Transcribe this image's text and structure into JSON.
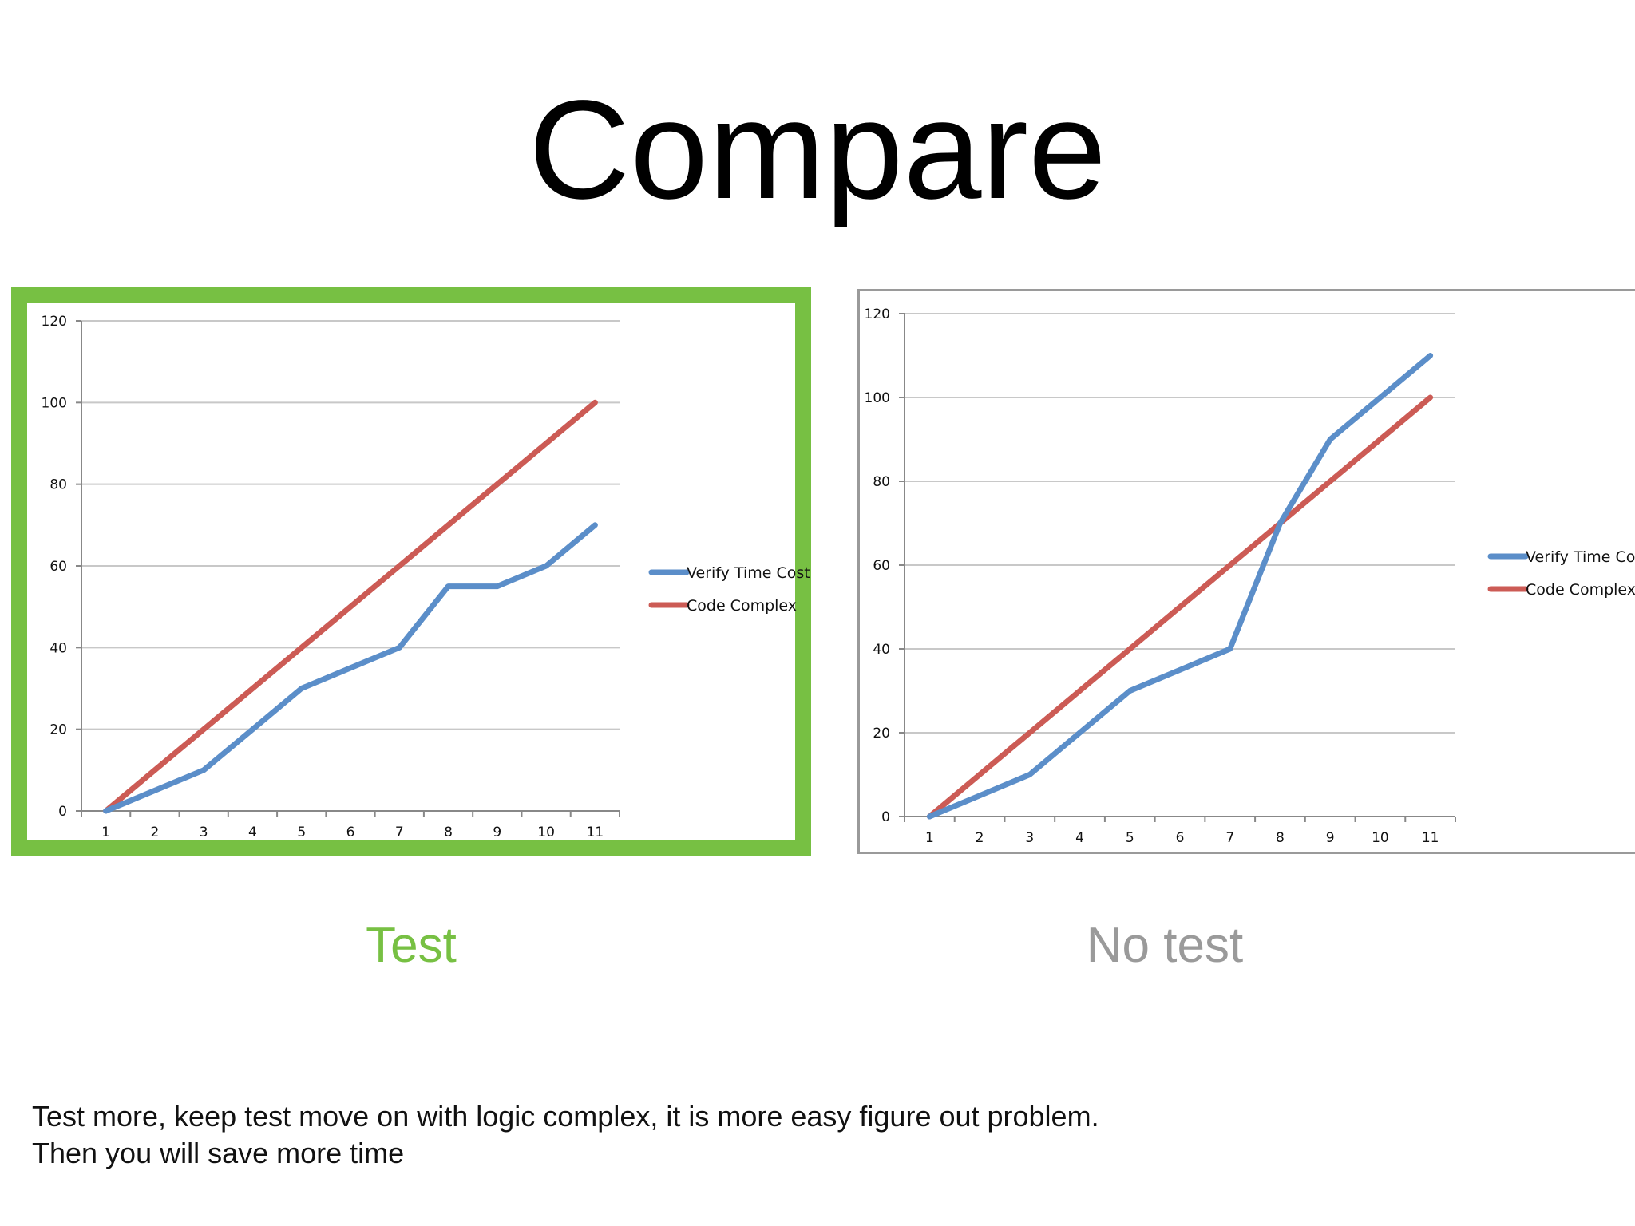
{
  "slide": {
    "title": "Compare",
    "notes": [
      "Test more, keep test move on with logic complex, it is more easy figure out problem.",
      "Then you will save more time"
    ]
  },
  "panels": [
    {
      "caption": "Test",
      "caption_color": "#77c043",
      "frame_color": "#77c043"
    },
    {
      "caption": "No test",
      "caption_color": "#9a9a9a",
      "frame_color": "#9a9a9a"
    }
  ],
  "chart_data": [
    {
      "type": "line",
      "x": [
        1,
        2,
        3,
        4,
        5,
        6,
        7,
        8,
        9,
        10,
        11
      ],
      "ylim": [
        0,
        120
      ],
      "yticks": [
        0,
        20,
        40,
        60,
        80,
        100,
        120
      ],
      "grid": true,
      "legend": "right",
      "series": [
        {
          "name": "Verify Time Cost",
          "color": "#5b8ec9",
          "values": [
            0,
            5,
            10,
            20,
            30,
            35,
            40,
            55,
            55,
            60,
            70
          ]
        },
        {
          "name": "Code Complex",
          "color": "#cc5b55",
          "values": [
            0,
            10,
            20,
            30,
            40,
            50,
            60,
            70,
            80,
            90,
            100
          ]
        }
      ]
    },
    {
      "type": "line",
      "x": [
        1,
        2,
        3,
        4,
        5,
        6,
        7,
        8,
        9,
        10,
        11
      ],
      "ylim": [
        0,
        120
      ],
      "yticks": [
        0,
        20,
        40,
        60,
        80,
        100,
        120
      ],
      "grid": true,
      "legend": "right",
      "series": [
        {
          "name": "Verify Time Cost",
          "color": "#5b8ec9",
          "values": [
            0,
            5,
            10,
            20,
            30,
            35,
            40,
            70,
            90,
            100,
            110
          ]
        },
        {
          "name": "Code Complex",
          "color": "#cc5b55",
          "values": [
            0,
            10,
            20,
            30,
            40,
            50,
            60,
            70,
            80,
            90,
            100
          ]
        }
      ]
    }
  ]
}
